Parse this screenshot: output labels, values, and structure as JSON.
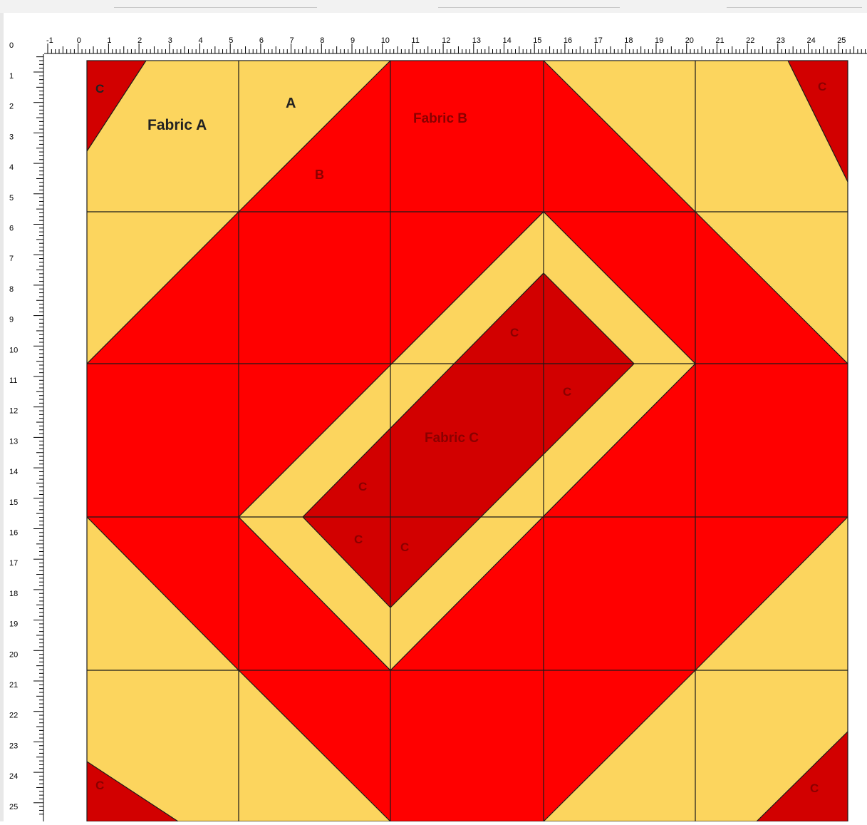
{
  "ruler": {
    "corner_label": "0",
    "horizontal_labels": [
      "-1",
      "0",
      "1",
      "2",
      "3",
      "4",
      "5",
      "6",
      "7",
      "8",
      "9",
      "10",
      "11",
      "12",
      "13",
      "14",
      "15",
      "16",
      "17",
      "18",
      "19",
      "20",
      "21",
      "22",
      "23",
      "24",
      "25",
      "2"
    ],
    "vertical_labels": [
      "1",
      "2",
      "3",
      "4",
      "5",
      "6",
      "7",
      "8",
      "9",
      "10",
      "11",
      "12",
      "13",
      "14",
      "15",
      "16",
      "17",
      "18",
      "19",
      "20",
      "21",
      "22",
      "23",
      "24",
      "25"
    ]
  },
  "colors": {
    "fabric_a": "#FCD55E",
    "fabric_b": "#FF0000",
    "fabric_c": "#D20000",
    "seam": "#1a1a1a"
  },
  "block": {
    "labels": {
      "fabric_a": "Fabric A",
      "fabric_b": "Fabric B",
      "fabric_c": "Fabric C",
      "a": "A",
      "b": "B",
      "c": "C"
    }
  }
}
